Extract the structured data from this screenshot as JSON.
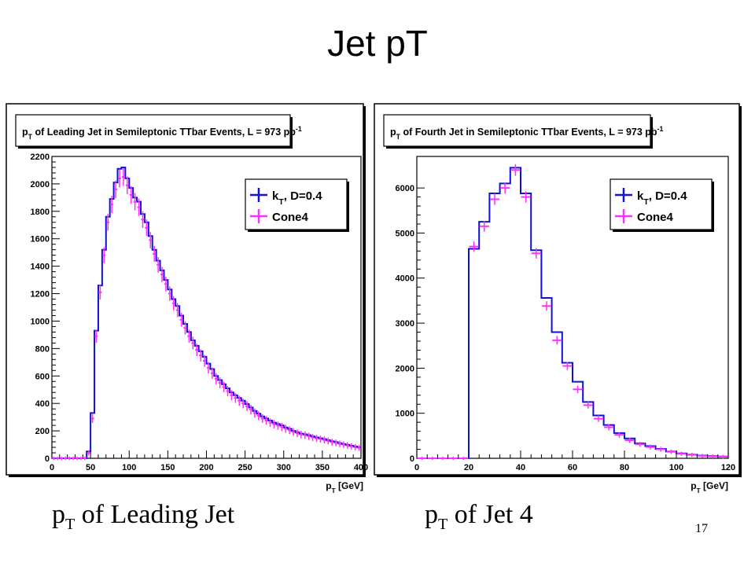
{
  "slide": {
    "title": "Jet pT",
    "page_number": "17",
    "captions": [
      {
        "main": "p",
        "sub": "T",
        "rest": " of Leading Jet"
      },
      {
        "main": "p",
        "sub": "T",
        "rest": " of Jet 4"
      }
    ]
  },
  "colors": {
    "kt": "#1010d8",
    "cone": "#ff30ff",
    "frame": "#000000",
    "background": "#ffffff",
    "title_shadow": "#000000"
  },
  "chart_data": [
    {
      "type": "histogram",
      "title": {
        "main": "p",
        "sub": "T",
        "text": " of Leading Jet in Semileptonic TTbar Events, L = 973 pb",
        "sup": "-1"
      },
      "xlabel": {
        "main": "p",
        "sub": "T",
        "text": " [GeV]"
      },
      "xlim": [
        0,
        400
      ],
      "ylim": [
        0,
        2200
      ],
      "xticks": [
        "0",
        "50",
        "100",
        "150",
        "200",
        "250",
        "300",
        "350",
        "400"
      ],
      "yticks": [
        "0",
        "200",
        "400",
        "600",
        "800",
        "1000",
        "1200",
        "1400",
        "1600",
        "1800",
        "2000",
        "2200"
      ],
      "bin_width": 5,
      "legend_position": "top-right",
      "series": [
        {
          "name": "k_T, D=0.4",
          "label": {
            "main": "k",
            "sub": "T",
            "text": ", D=0.4"
          },
          "style": "step",
          "values": [
            0,
            0,
            0,
            0,
            0,
            0,
            0,
            0,
            0,
            50,
            330,
            930,
            1260,
            1520,
            1760,
            1890,
            2010,
            2110,
            2120,
            2040,
            1970,
            1900,
            1870,
            1780,
            1720,
            1620,
            1520,
            1440,
            1370,
            1300,
            1230,
            1160,
            1110,
            1040,
            980,
            920,
            860,
            820,
            780,
            740,
            690,
            650,
            600,
            570,
            540,
            510,
            480,
            460,
            440,
            420,
            395,
            370,
            345,
            325,
            305,
            290,
            275,
            260,
            250,
            240,
            225,
            215,
            200,
            190,
            180,
            175,
            168,
            160,
            152,
            146,
            140,
            132,
            124,
            118,
            110,
            104,
            98,
            92,
            86,
            80
          ]
        },
        {
          "name": "Cone4",
          "label": {
            "text": "Cone4"
          },
          "style": "errorbar",
          "values": [
            0,
            0,
            0,
            0,
            0,
            0,
            0,
            0,
            0,
            40,
            290,
            890,
            1210,
            1480,
            1720,
            1850,
            1960,
            2040,
            2050,
            1990,
            1920,
            1870,
            1830,
            1740,
            1680,
            1590,
            1490,
            1410,
            1340,
            1270,
            1200,
            1130,
            1080,
            1010,
            950,
            890,
            840,
            790,
            750,
            710,
            660,
            620,
            580,
            550,
            520,
            490,
            460,
            440,
            420,
            400,
            380,
            355,
            330,
            310,
            290,
            275,
            260,
            248,
            238,
            228,
            215,
            205,
            192,
            183,
            173,
            168,
            160,
            152,
            145,
            140,
            134,
            126,
            118,
            112,
            105,
            99,
            93,
            87,
            81,
            76
          ]
        }
      ]
    },
    {
      "type": "histogram",
      "title": {
        "main": "p",
        "sub": "T",
        "text": " of Fourth Jet in Semileptonic TTbar Events, L = 973 pb",
        "sup": "-1"
      },
      "xlabel": {
        "main": "p",
        "sub": "T",
        "text": " [GeV]"
      },
      "xlim": [
        0,
        120
      ],
      "ylim": [
        0,
        6700
      ],
      "xticks": [
        "0",
        "20",
        "40",
        "60",
        "80",
        "100",
        "120"
      ],
      "yticks": [
        "0",
        "1000",
        "2000",
        "3000",
        "4000",
        "5000",
        "6000"
      ],
      "bin_width": 4,
      "legend_position": "top-right",
      "series": [
        {
          "name": "k_T, D=0.4",
          "label": {
            "main": "k",
            "sub": "T",
            "text": ", D=0.4"
          },
          "style": "step",
          "values": [
            0,
            0,
            0,
            0,
            0,
            4650,
            5250,
            5880,
            6100,
            6450,
            5880,
            4620,
            3560,
            2800,
            2120,
            1700,
            1250,
            950,
            740,
            560,
            440,
            330,
            270,
            210,
            150,
            110,
            80,
            60,
            50,
            40
          ]
        },
        {
          "name": "Cone4",
          "label": {
            "text": "Cone4"
          },
          "style": "errorbar",
          "values": [
            0,
            0,
            0,
            0,
            0,
            4700,
            5150,
            5750,
            6000,
            6400,
            5800,
            4550,
            3380,
            2620,
            2050,
            1530,
            1180,
            880,
            690,
            520,
            400,
            310,
            250,
            200,
            145,
            100,
            75,
            55,
            45,
            35
          ]
        }
      ]
    }
  ]
}
